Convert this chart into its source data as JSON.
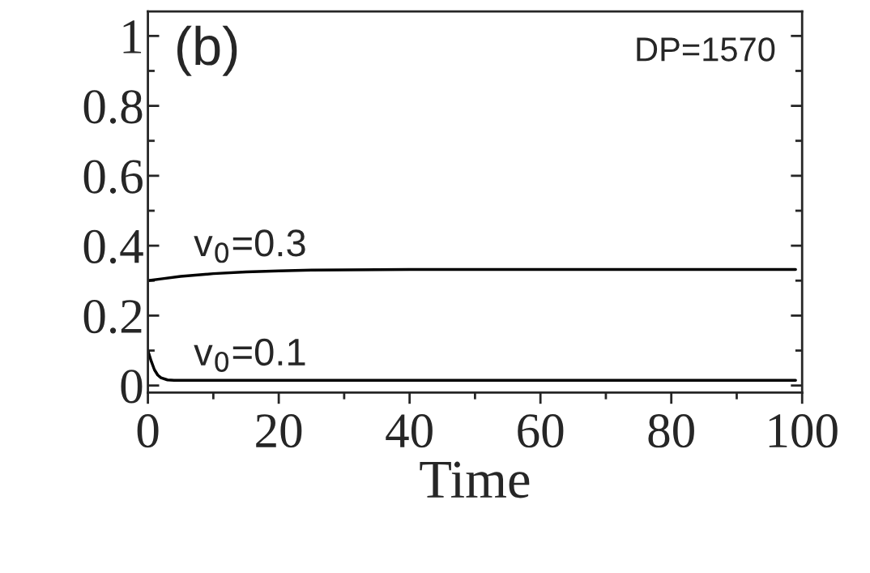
{
  "chart_data": {
    "type": "line",
    "xlabel": "Time",
    "annotations": [
      "(b)",
      "DP=1570"
    ],
    "series": [
      {
        "name": "v$_{0}$=0.3",
        "color": "#000000",
        "x": [
          0,
          2,
          5,
          10,
          15,
          20,
          25,
          30,
          40,
          60,
          80,
          99
        ],
        "values": [
          0.3,
          0.305,
          0.312,
          0.32,
          0.325,
          0.328,
          0.33,
          0.331,
          0.332,
          0.332,
          0.332,
          0.332
        ]
      },
      {
        "name": "v$_{0}$=0.1",
        "color": "#000000",
        "x": [
          0,
          0.5,
          1,
          1.5,
          2,
          3,
          4,
          6,
          10,
          40,
          99
        ],
        "values": [
          0.1,
          0.07,
          0.045,
          0.03,
          0.022,
          0.016,
          0.015,
          0.015,
          0.015,
          0.015,
          0.015
        ]
      }
    ],
    "xlim": [
      0,
      100
    ],
    "xticks": [
      0,
      20,
      40,
      60,
      80,
      100
    ],
    "ylim": [
      -0.02,
      1.07
    ],
    "yticks": [
      0,
      0.2,
      0.4,
      0.6,
      0.8,
      1
    ],
    "grid": false,
    "legend": false,
    "line_style": "solid",
    "marker": "none"
  }
}
